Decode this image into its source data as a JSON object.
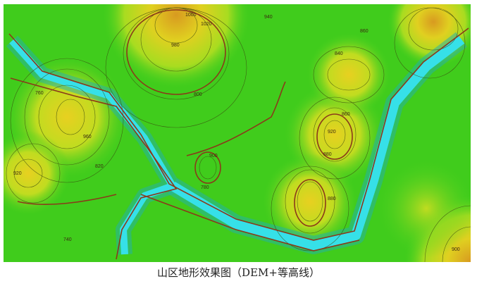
{
  "caption": "山区地形效果图（DEM+等高线）",
  "map": {
    "type": "DEM hillshade with contour lines",
    "colors": {
      "low": "#2fd0e0",
      "mid": "#3fd020",
      "high": "#e0d020",
      "peak": "#d89a20",
      "index_contour": "#8a3a1a",
      "contour": "#3a4a10"
    },
    "contour_labels": [
      "1000",
      "1020",
      "980",
      "960",
      "940",
      "920",
      "900",
      "880",
      "860",
      "840",
      "820",
      "800",
      "780",
      "760",
      "740",
      "920",
      "880",
      "900",
      "860"
    ]
  }
}
